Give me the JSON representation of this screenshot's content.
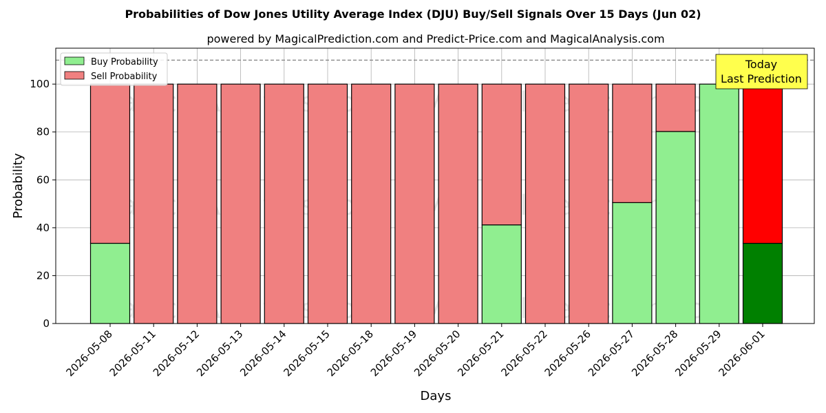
{
  "chart_data": {
    "type": "bar",
    "stacked": true,
    "title": "Probabilities of Dow Jones Utility Average Index (DJU) Buy/Sell Signals Over 15 Days (Jun 02)",
    "subtitle": "powered by MagicalPrediction.com and Predict-Price.com and MagicalAnalysis.com",
    "xlabel": "Days",
    "ylabel": "Probability",
    "ylim": [
      0,
      115
    ],
    "yticks": [
      0,
      20,
      40,
      60,
      80,
      100
    ],
    "grid": true,
    "legend_position": "top-left",
    "reference_line": 110,
    "categories": [
      "2026-05-08",
      "2026-05-11",
      "2026-05-12",
      "2026-05-13",
      "2026-05-14",
      "2026-05-15",
      "2026-05-18",
      "2026-05-19",
      "2026-05-20",
      "2026-05-21",
      "2026-05-22",
      "2026-05-26",
      "2026-05-27",
      "2026-05-28",
      "2026-05-29",
      "2026-06-01"
    ],
    "series": [
      {
        "name": "Buy Probability",
        "color": "#90ee90",
        "values": [
          33.5,
          0,
          0,
          0,
          0,
          0,
          0,
          0,
          0,
          41.2,
          0,
          0,
          50.5,
          80.2,
          100,
          33.5
        ]
      },
      {
        "name": "Sell Probability",
        "color": "#f08080",
        "values": [
          66.5,
          100,
          100,
          100,
          100,
          100,
          100,
          100,
          100,
          58.8,
          100,
          100,
          49.5,
          19.8,
          0,
          66.5
        ]
      }
    ],
    "highlight": {
      "index": 15,
      "buy_color": "#008000",
      "sell_color": "#ff0000"
    },
    "annotation": {
      "lines": [
        "Today",
        "Last Prediction"
      ],
      "background": "#ffff4d"
    },
    "watermarks": [
      "MagicalAnalysis.com",
      "MagicalPrediction.com"
    ]
  }
}
